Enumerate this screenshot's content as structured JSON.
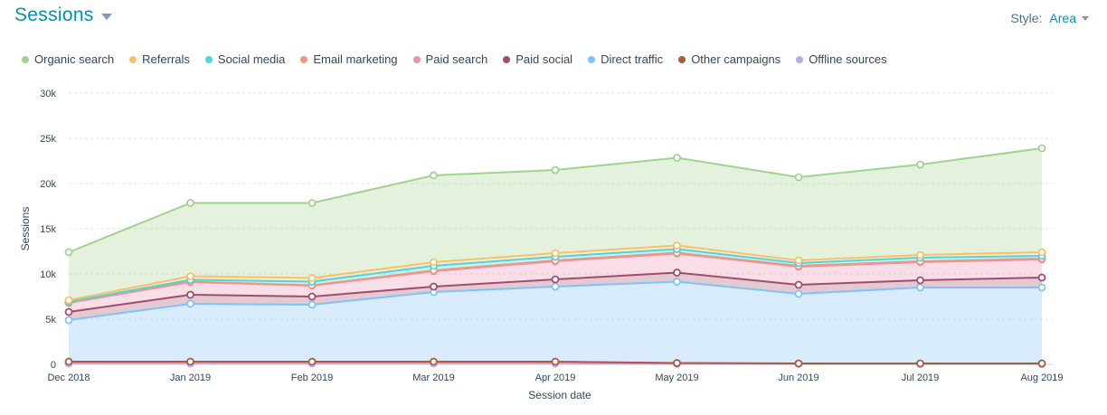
{
  "header": {
    "title": "Sessions",
    "style_label": "Style:",
    "style_value": "Area"
  },
  "colors": {
    "organic": "#a2d28f",
    "referrals": "#f5c26b",
    "social": "#51d3d9",
    "email": "#ea9b7e",
    "paid_search": "#ea90b1",
    "paid_social": "#a04d6a",
    "direct": "#81c1fd",
    "other": "#b0583a",
    "offline": "#bda9ea"
  },
  "chart_data": {
    "type": "area",
    "stacked": true,
    "xlabel": "Session date",
    "ylabel": "Sessions",
    "ylim": [
      0,
      30000
    ],
    "y_ticks": [
      0,
      5000,
      10000,
      15000,
      20000,
      25000,
      30000
    ],
    "y_tick_labels": [
      "0",
      "5k",
      "10k",
      "15k",
      "20k",
      "25k",
      "30k"
    ],
    "grid": true,
    "legend_position": "top-left",
    "categories": [
      "Dec 2018",
      "Jan 2019",
      "Feb 2019",
      "Mar 2019",
      "Apr 2019",
      "May 2019",
      "Jun 2019",
      "Jul 2019",
      "Aug 2019"
    ],
    "series": [
      {
        "name": "Organic search",
        "color_key": "organic",
        "values": [
          5300,
          8100,
          8300,
          9600,
          9200,
          9700,
          9200,
          10000,
          11500
        ]
      },
      {
        "name": "Referrals",
        "color_key": "referrals",
        "values": [
          150,
          400,
          400,
          400,
          400,
          400,
          300,
          300,
          400
        ]
      },
      {
        "name": "Social media",
        "color_key": "social",
        "values": [
          100,
          200,
          400,
          500,
          400,
          400,
          300,
          400,
          300
        ]
      },
      {
        "name": "Email marketing",
        "color_key": "email",
        "values": [
          50,
          50,
          50,
          100,
          100,
          100,
          100,
          100,
          100
        ]
      },
      {
        "name": "Paid search",
        "color_key": "paid_search",
        "values": [
          1000,
          1400,
          1200,
          1700,
          2000,
          2100,
          2000,
          2000,
          2000
        ]
      },
      {
        "name": "Paid social",
        "color_key": "paid_social",
        "values": [
          900,
          1000,
          900,
          600,
          800,
          1000,
          1000,
          800,
          1100
        ]
      },
      {
        "name": "Direct traffic",
        "color_key": "direct",
        "values": [
          4600,
          6400,
          6300,
          7700,
          8300,
          9000,
          7700,
          8400,
          8400
        ]
      },
      {
        "name": "Other campaigns",
        "color_key": "other",
        "values": [
          200,
          200,
          200,
          200,
          200,
          100,
          50,
          50,
          50
        ]
      },
      {
        "name": "Offline sources",
        "color_key": "offline",
        "values": [
          100,
          100,
          100,
          100,
          100,
          50,
          50,
          50,
          50
        ]
      }
    ]
  }
}
